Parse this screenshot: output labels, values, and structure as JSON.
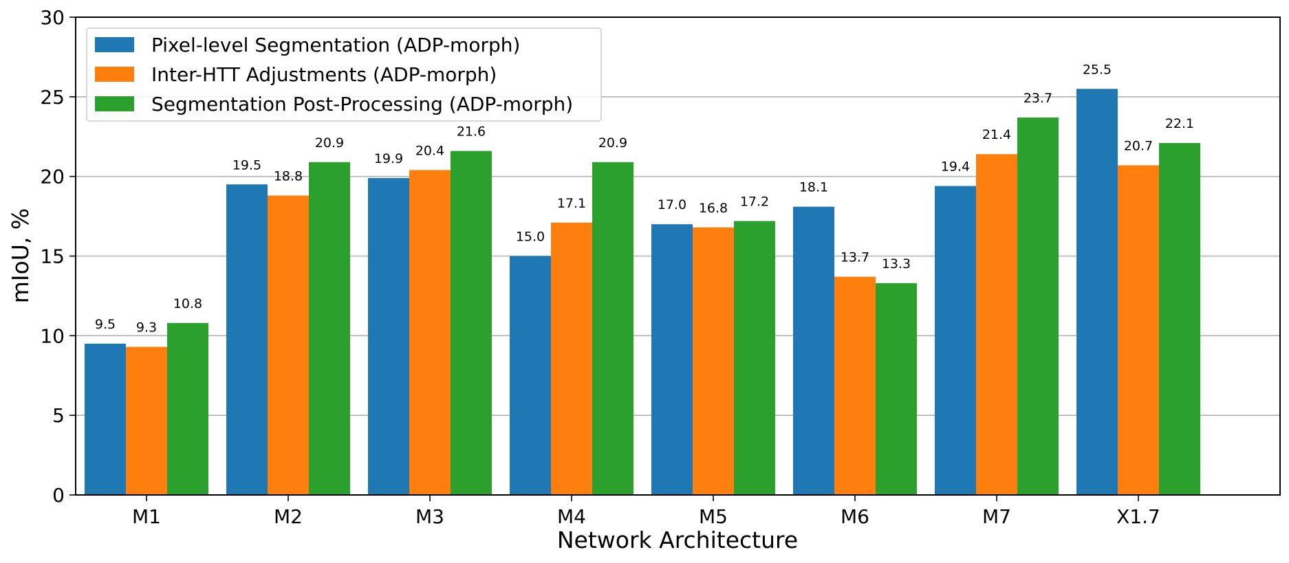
{
  "chart_data": {
    "type": "bar",
    "title": "",
    "xlabel": "Network Architecture",
    "ylabel": "mIoU, %",
    "ylim": [
      0,
      30
    ],
    "yticks": [
      0,
      5,
      10,
      15,
      20,
      25,
      30
    ],
    "grid": true,
    "legend_position": "top-left",
    "categories": [
      "M1",
      "M2",
      "M3",
      "M4",
      "M5",
      "M6",
      "M7",
      "X1.7"
    ],
    "series": [
      {
        "name": "Pixel-level Segmentation (ADP-morph)",
        "color": "#1f77b4",
        "values": [
          9.5,
          19.5,
          19.9,
          15.0,
          17.0,
          18.1,
          19.4,
          25.5
        ],
        "labels": [
          "9.5",
          "19.5",
          "19.9",
          "15.0",
          "17.0",
          "18.1",
          "19.4",
          "25.5"
        ]
      },
      {
        "name": "Inter-HTT Adjustments (ADP-morph)",
        "color": "#ff7f0e",
        "values": [
          9.3,
          18.8,
          20.4,
          17.1,
          16.8,
          13.7,
          21.4,
          20.7
        ],
        "labels": [
          "9.3",
          "18.8",
          "20.4",
          "17.1",
          "16.8",
          "13.7",
          "21.4",
          "20.7"
        ]
      },
      {
        "name": "Segmentation Post-Processing (ADP-morph)",
        "color": "#2ca02c",
        "values": [
          10.8,
          20.9,
          21.6,
          20.9,
          17.2,
          13.3,
          23.7,
          22.1
        ],
        "labels": [
          "10.8",
          "20.9",
          "21.6",
          "20.9",
          "17.2",
          "13.3",
          "23.7",
          "22.1"
        ]
      }
    ]
  }
}
